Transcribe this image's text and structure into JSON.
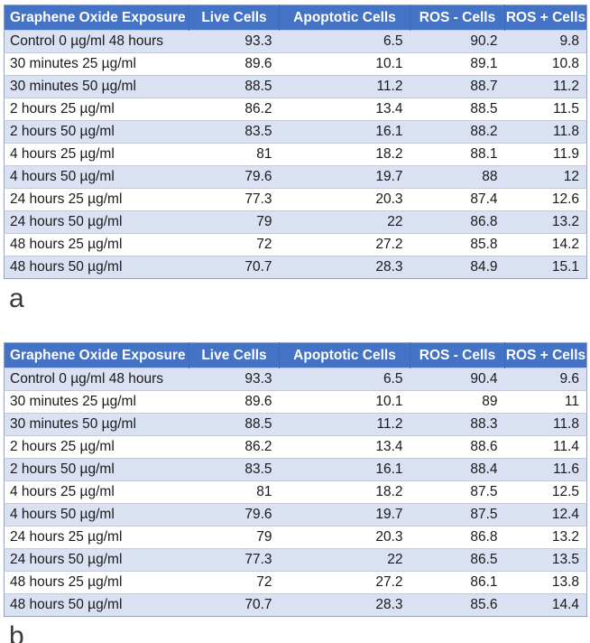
{
  "colors": {
    "header_bg": "#4472C4",
    "header_text": "#FFFFFF",
    "banded_row_bg": "#D9E1F2",
    "plain_row_bg": "#FFFFFF",
    "body_text": "#1A1A1A",
    "label_text": "#3B3B3B"
  },
  "figure": {
    "panels": [
      {
        "label": "a",
        "table": {
          "columns": [
            "Graphene Oxide Exposure",
            "Live Cells",
            "Apoptotic Cells",
            "ROS - Cells",
            "ROS + Cells"
          ],
          "rows": [
            [
              "Control 0 µg/ml 48 hours",
              "93.3",
              "6.5",
              "90.2",
              "9.8"
            ],
            [
              "30 minutes 25 µg/ml",
              "89.6",
              "10.1",
              "89.1",
              "10.8"
            ],
            [
              "30 minutes 50 µg/ml",
              "88.5",
              "11.2",
              "88.7",
              "11.2"
            ],
            [
              "2 hours 25 µg/ml",
              "86.2",
              "13.4",
              "88.5",
              "11.5"
            ],
            [
              "2 hours 50 µg/ml",
              "83.5",
              "16.1",
              "88.2",
              "11.8"
            ],
            [
              "4 hours 25 µg/ml",
              "81",
              "18.2",
              "88.1",
              "11.9"
            ],
            [
              "4 hours 50 µg/ml",
              "79.6",
              "19.7",
              "88",
              "12"
            ],
            [
              "24 hours 25 µg/ml",
              "77.3",
              "20.3",
              "87.4",
              "12.6"
            ],
            [
              "24 hours 50 µg/ml",
              "79",
              "22",
              "86.8",
              "13.2"
            ],
            [
              "48 hours 25 µg/ml",
              "72",
              "27.2",
              "85.8",
              "14.2"
            ],
            [
              "48 hours 50 µg/ml",
              "70.7",
              "28.3",
              "84.9",
              "15.1"
            ]
          ]
        }
      },
      {
        "label": "b",
        "table": {
          "columns": [
            "Graphene Oxide Exposure",
            "Live Cells",
            "Apoptotic Cells",
            "ROS - Cells",
            "ROS + Cells"
          ],
          "rows": [
            [
              "Control 0 µg/ml 48 hours",
              "93.3",
              "6.5",
              "90.4",
              "9.6"
            ],
            [
              "30 minutes 25 µg/ml",
              "89.6",
              "10.1",
              "89",
              "11"
            ],
            [
              "30 minutes 50 µg/ml",
              "88.5",
              "11.2",
              "88.3",
              "11.8"
            ],
            [
              "2 hours 25 µg/ml",
              "86.2",
              "13.4",
              "88.6",
              "11.4"
            ],
            [
              "2 hours 50 µg/ml",
              "83.5",
              "16.1",
              "88.4",
              "11.6"
            ],
            [
              "4 hours 25 µg/ml",
              "81",
              "18.2",
              "87.5",
              "12.5"
            ],
            [
              "4 hours 50 µg/ml",
              "79.6",
              "19.7",
              "87.5",
              "12.4"
            ],
            [
              "24 hours 25 µg/ml",
              "79",
              "20.3",
              "86.8",
              "13.2"
            ],
            [
              "24 hours 50 µg/ml",
              "77.3",
              "22",
              "86.5",
              "13.5"
            ],
            [
              "48 hours 25 µg/ml",
              "72",
              "27.2",
              "86.1",
              "13.8"
            ],
            [
              "48 hours 50 µg/ml",
              "70.7",
              "28.3",
              "85.6",
              "14.4"
            ]
          ]
        }
      }
    ]
  }
}
